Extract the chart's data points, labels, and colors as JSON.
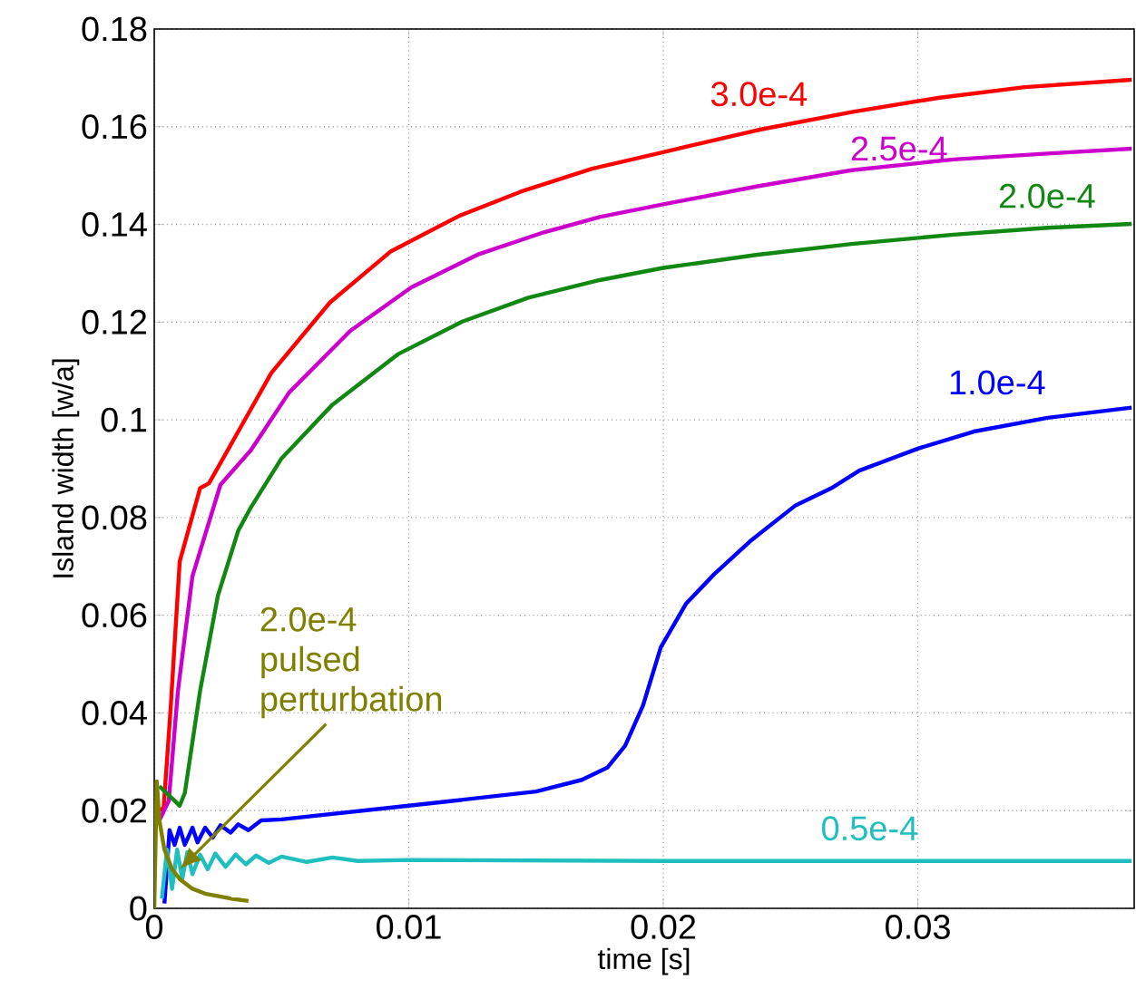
{
  "chart_data": {
    "type": "line",
    "xlabel": "time [s]",
    "ylabel": "Island width [w/a]",
    "xlim": [
      0,
      0.0385
    ],
    "ylim": [
      0,
      0.18
    ],
    "xticks": [
      0,
      0.01,
      0.02,
      0.03
    ],
    "yticks": [
      0,
      0.02,
      0.04,
      0.06,
      0.08,
      0.1,
      0.12,
      0.14,
      0.16,
      0.18
    ],
    "grid": true,
    "legend": false,
    "line_style": "solid",
    "marker": "none",
    "series": [
      {
        "name": "3.0e-4",
        "color": "#ff0000",
        "x": [
          0.0002,
          0.00037,
          0.00065,
          0.001,
          0.0018,
          0.00215,
          0.0033,
          0.0046,
          0.0069,
          0.0093,
          0.012,
          0.0144,
          0.0172,
          0.02,
          0.0237,
          0.0274,
          0.0308,
          0.0342,
          0.0384
        ],
        "values": [
          0.02,
          0.0206,
          0.0415,
          0.071,
          0.086,
          0.087,
          0.0976,
          0.1096,
          0.124,
          0.1345,
          0.1418,
          0.1467,
          0.1514,
          0.1548,
          0.1593,
          0.163,
          0.1659,
          0.1681,
          0.1696
        ]
      },
      {
        "name": "2.5e-4",
        "color": "#cc00cc",
        "x": [
          0.0002,
          0.00057,
          0.00093,
          0.0015,
          0.0026,
          0.0038,
          0.0053,
          0.0077,
          0.0101,
          0.0127,
          0.0152,
          0.0175,
          0.02,
          0.0237,
          0.0274,
          0.0314,
          0.0351,
          0.0384
        ],
        "values": [
          0.018,
          0.022,
          0.0445,
          0.068,
          0.0867,
          0.0938,
          0.1056,
          0.1182,
          0.1271,
          0.1338,
          0.1382,
          0.1415,
          0.1441,
          0.1478,
          0.1511,
          0.1533,
          0.1545,
          0.1555
        ]
      },
      {
        "name": "2.0e-4",
        "color": "#118811",
        "x": [
          0.0002,
          0.0008,
          0.001,
          0.0012,
          0.0018,
          0.0025,
          0.0033,
          0.0038,
          0.005,
          0.007,
          0.0096,
          0.0121,
          0.0147,
          0.0175,
          0.02,
          0.0237,
          0.0274,
          0.0314,
          0.0351,
          0.0384
        ],
        "values": [
          0.025,
          0.022,
          0.021,
          0.0236,
          0.0445,
          0.064,
          0.0773,
          0.0821,
          0.0921,
          0.1031,
          0.1135,
          0.1201,
          0.125,
          0.1286,
          0.1311,
          0.1338,
          0.136,
          0.1379,
          0.1393,
          0.1401
        ]
      },
      {
        "name": "1.0e-4",
        "color": "#0000ff",
        "x": [
          0.0004,
          0.0006,
          0.0008,
          0.001,
          0.0012,
          0.0015,
          0.0017,
          0.002,
          0.0023,
          0.0026,
          0.003,
          0.0033,
          0.0037,
          0.0042,
          0.005,
          0.01,
          0.015,
          0.0168,
          0.0178,
          0.0185,
          0.0192,
          0.0199,
          0.0209,
          0.022,
          0.0234,
          0.0252,
          0.0266,
          0.0277,
          0.03,
          0.0322,
          0.0351,
          0.0384
        ],
        "values": [
          0.001,
          0.016,
          0.013,
          0.0165,
          0.013,
          0.0165,
          0.0135,
          0.0165,
          0.0145,
          0.017,
          0.0155,
          0.0172,
          0.016,
          0.018,
          0.0182,
          0.021,
          0.0239,
          0.0263,
          0.0288,
          0.0333,
          0.0415,
          0.0534,
          0.0624,
          0.0684,
          0.0751,
          0.0825,
          0.086,
          0.0896,
          0.0941,
          0.0976,
          0.1004,
          0.1025
        ]
      },
      {
        "name": "0.5e-4",
        "color": "#1fbfbf",
        "x": [
          0.0003,
          0.0005,
          0.0007,
          0.0009,
          0.0011,
          0.0013,
          0.0015,
          0.0018,
          0.0021,
          0.0024,
          0.0028,
          0.0032,
          0.0036,
          0.004,
          0.0045,
          0.005,
          0.006,
          0.007,
          0.008,
          0.01,
          0.02,
          0.03,
          0.0384
        ],
        "values": [
          0.002,
          0.012,
          0.004,
          0.012,
          0.006,
          0.0115,
          0.007,
          0.011,
          0.008,
          0.0112,
          0.0085,
          0.011,
          0.009,
          0.0108,
          0.0093,
          0.0106,
          0.0095,
          0.0104,
          0.0097,
          0.0099,
          0.0097,
          0.0097,
          0.0097
        ]
      },
      {
        "name": "2.0e-4 pulsed perturbation",
        "color": "#808000",
        "x": [
          0,
          0.0001,
          0.0002,
          0.0004,
          0.0007,
          0.001,
          0.0015,
          0.002,
          0.003,
          0.0037
        ],
        "values": [
          0,
          0.026,
          0.018,
          0.012,
          0.008,
          0.006,
          0.004,
          0.003,
          0.002,
          0.0015
        ]
      }
    ]
  }
}
